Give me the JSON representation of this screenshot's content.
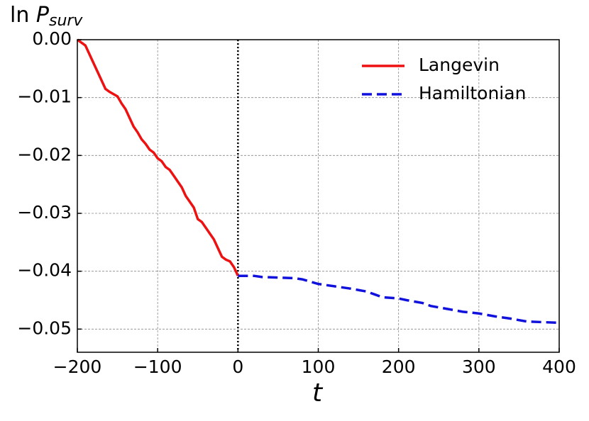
{
  "chart_data": {
    "type": "line",
    "ylabel": [
      "ln ",
      "P",
      "surv"
    ],
    "xlabel": "t",
    "xlim": [
      -200,
      400
    ],
    "ylim": [
      -0.054,
      0
    ],
    "xticks": [
      {
        "value": -200,
        "label": "−200"
      },
      {
        "value": -100,
        "label": "−100"
      },
      0,
      100,
      200,
      300,
      400
    ],
    "yticks": [
      {
        "value": 0,
        "label": "0.00"
      },
      {
        "value": -0.01,
        "label": "−0.01"
      },
      {
        "value": -0.02,
        "label": "−0.02"
      },
      {
        "value": -0.03,
        "label": "−0.03"
      },
      {
        "value": -0.04,
        "label": "−0.04"
      },
      {
        "value": -0.05,
        "label": "−0.05"
      }
    ],
    "grid": true,
    "vline_x": 0,
    "legend": "upper right",
    "series": [
      {
        "name": "Langevin",
        "color": "#ee1111",
        "dash": "solid",
        "x": [
          -200,
          -195,
          -190,
          -185,
          -180,
          -175,
          -170,
          -165,
          -160,
          -150,
          -145,
          -140,
          -135,
          -130,
          -125,
          -120,
          -115,
          -110,
          -105,
          -100,
          -95,
          -90,
          -85,
          -80,
          -75,
          -70,
          -65,
          -60,
          -55,
          -50,
          -45,
          -40,
          -35,
          -30,
          -25,
          -20,
          -15,
          -10,
          -5,
          0
        ],
        "values": [
          0,
          -0.0005,
          -0.001,
          -0.0025,
          -0.004,
          -0.0055,
          -0.007,
          -0.0085,
          -0.009,
          -0.0098,
          -0.011,
          -0.012,
          -0.0135,
          -0.015,
          -0.016,
          -0.0172,
          -0.018,
          -0.019,
          -0.0195,
          -0.0205,
          -0.021,
          -0.022,
          -0.0225,
          -0.0235,
          -0.0245,
          -0.0255,
          -0.027,
          -0.028,
          -0.029,
          -0.031,
          -0.0315,
          -0.0325,
          -0.0335,
          -0.0345,
          -0.036,
          -0.0375,
          -0.038,
          -0.0383,
          -0.0393,
          -0.0408
        ]
      },
      {
        "name": "Hamiltonian",
        "color": "#1111dd",
        "dash": "dashed",
        "x": [
          0,
          20,
          30,
          70,
          80,
          90,
          100,
          120,
          140,
          160,
          170,
          180,
          200,
          210,
          230,
          240,
          260,
          280,
          300,
          320,
          340,
          360,
          400
        ],
        "values": [
          -0.0408,
          -0.0408,
          -0.041,
          -0.0412,
          -0.0414,
          -0.0418,
          -0.0422,
          -0.0426,
          -0.043,
          -0.0435,
          -0.044,
          -0.0445,
          -0.0447,
          -0.045,
          -0.0455,
          -0.046,
          -0.0465,
          -0.047,
          -0.0473,
          -0.0478,
          -0.0482,
          -0.0487,
          -0.0489
        ]
      }
    ]
  }
}
